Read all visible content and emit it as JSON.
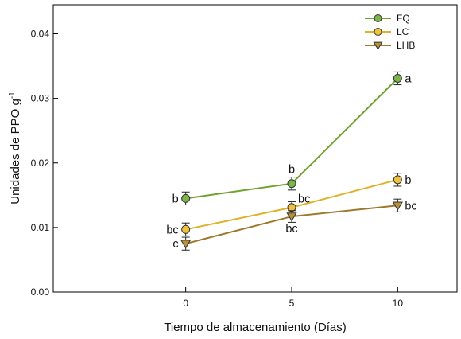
{
  "chart_data": {
    "type": "line",
    "xlabel": "Tiempo de almacenamiento (Días)",
    "ylabel": "Unidades de PPO g",
    "ylabel_superscript": "-1",
    "x": [
      0,
      5,
      10
    ],
    "x_ticks": [
      "0",
      "5",
      "10"
    ],
    "xlim": [
      -6.25,
      12.8
    ],
    "ylim": [
      0.0,
      0.0445
    ],
    "y_ticks": [
      "0.00",
      "0.01",
      "0.02",
      "0.03",
      "0.04"
    ],
    "grid": false,
    "legend_position": "top-right",
    "series": [
      {
        "name": "FQ",
        "marker": "circle",
        "color": "#6fa22e",
        "marker_fill": "#7ab648",
        "values": [
          0.0145,
          0.0168,
          0.0331
        ],
        "errors": [
          0.001,
          0.001,
          0.001
        ],
        "labels": [
          "b",
          "b",
          "a"
        ],
        "label_positions": [
          "left",
          "above",
          "right"
        ]
      },
      {
        "name": "LC",
        "marker": "circle",
        "color": "#e0b12a",
        "marker_fill": "#f0c23a",
        "values": [
          0.0097,
          0.0131,
          0.0174
        ],
        "errors": [
          0.001,
          0.0009,
          0.001
        ],
        "labels": [
          "bc",
          "bc",
          "b"
        ],
        "label_positions": [
          "left",
          "right-above",
          "right"
        ]
      },
      {
        "name": "LHB",
        "marker": "triangle-down",
        "color": "#9c7a2c",
        "marker_fill": "#b89238",
        "values": [
          0.0075,
          0.0117,
          0.0134
        ],
        "errors": [
          0.001,
          0.0009,
          0.001
        ],
        "labels": [
          "c",
          "bc",
          "bc"
        ],
        "label_positions": [
          "left",
          "below",
          "right"
        ]
      }
    ]
  }
}
